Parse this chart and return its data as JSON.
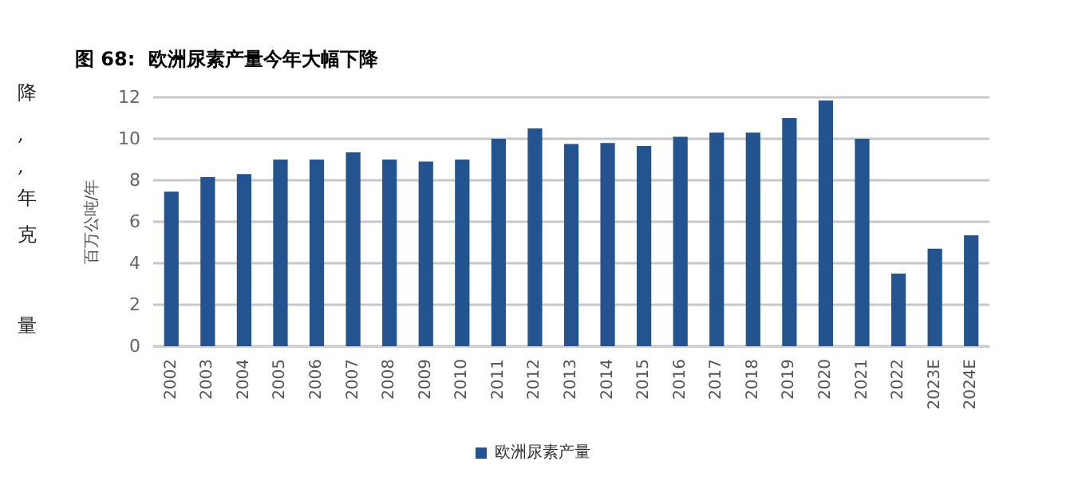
{
  "chart_data": {
    "type": "bar",
    "title": "图 68:  欧洲尿素产量今年大幅下降",
    "ylabel": "百万公吨/年",
    "categories": [
      "2002",
      "2003",
      "2004",
      "2005",
      "2006",
      "2007",
      "2008",
      "2009",
      "2010",
      "2011",
      "2012",
      "2013",
      "2014",
      "2015",
      "2016",
      "2017",
      "2018",
      "2019",
      "2020",
      "2021",
      "2022",
      "2023E",
      "2024E"
    ],
    "series": [
      {
        "name": "欧洲尿素产量",
        "color": "#23548f",
        "values": [
          7.45,
          8.15,
          8.3,
          9.0,
          9.0,
          9.35,
          9.0,
          8.9,
          9.0,
          10.0,
          10.5,
          9.75,
          9.8,
          9.65,
          10.1,
          10.3,
          10.3,
          11.0,
          11.85,
          10.0,
          3.5,
          4.7,
          5.35
        ]
      }
    ],
    "ylim": [
      0,
      12
    ],
    "yticks": [
      0,
      2,
      4,
      6,
      8,
      10,
      12
    ],
    "grid": "y",
    "legend": "bottom",
    "annotations": [
      "降",
      ",",
      ",",
      "年",
      "克",
      "量"
    ]
  }
}
